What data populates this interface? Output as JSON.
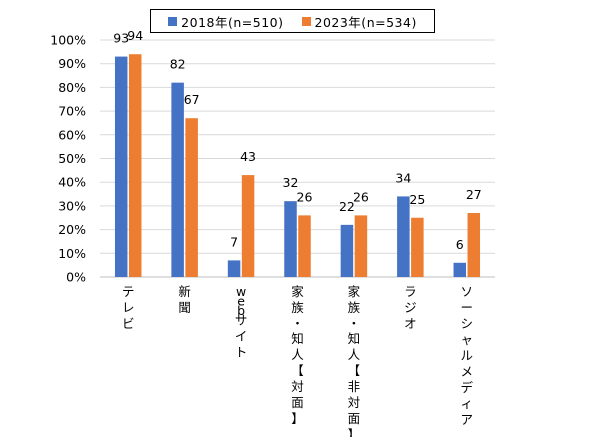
{
  "chart_data": {
    "type": "bar",
    "categories": [
      "テレビ",
      "新聞",
      "webサイト",
      "家族・知人【対面】",
      "家族・知人【非対面】",
      "ラジオ",
      "ソーシャルメディア"
    ],
    "series": [
      {
        "name": "2018年(n=510)",
        "color": "#4472C4",
        "values": [
          93,
          82,
          7,
          32,
          22,
          34,
          6
        ]
      },
      {
        "name": "2023年(n=534)",
        "color": "#ED7D31",
        "values": [
          94,
          67,
          43,
          26,
          26,
          25,
          27
        ]
      }
    ],
    "y_ticks": [
      "0%",
      "10%",
      "20%",
      "30%",
      "40%",
      "50%",
      "60%",
      "70%",
      "80%",
      "90%",
      "100%"
    ],
    "ylim": [
      0,
      100
    ],
    "grid": true,
    "legend_position": "top-center"
  }
}
